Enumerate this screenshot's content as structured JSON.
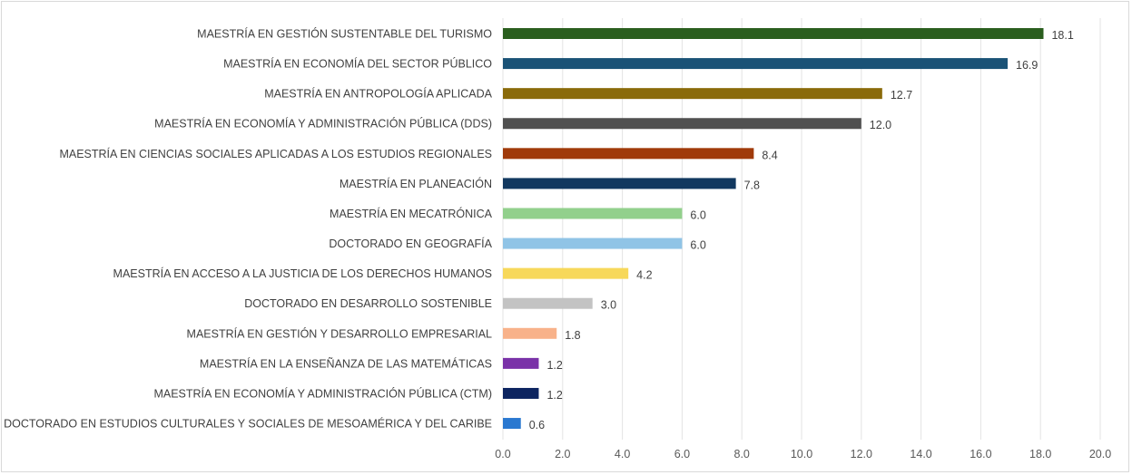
{
  "chart_data": {
    "type": "bar",
    "orientation": "horizontal",
    "title": "",
    "xlabel": "",
    "ylabel": "",
    "xlim": [
      0,
      20
    ],
    "ticks": [
      "0.0",
      "2.0",
      "4.0",
      "6.0",
      "8.0",
      "10.0",
      "12.0",
      "14.0",
      "16.0",
      "18.0",
      "20.0"
    ],
    "tick_values": [
      0,
      2,
      4,
      6,
      8,
      10,
      12,
      14,
      16,
      18,
      20
    ],
    "grid": "vertical",
    "legend": "none",
    "categories": [
      "MAESTRÍA EN GESTIÓN SUSTENTABLE DEL TURISMO",
      "MAESTRÍA EN ECONOMÍA DEL SECTOR PÚBLICO",
      "MAESTRÍA EN ANTROPOLOGÍA APLICADA",
      "MAESTRÍA EN ECONOMÍA Y ADMINISTRACIÓN PÚBLICA (DDS)",
      "MAESTRÍA EN CIENCIAS SOCIALES APLICADAS A LOS ESTUDIOS REGIONALES",
      "MAESTRÍA EN PLANEACIÓN",
      "MAESTRÍA EN MECATRÓNICA",
      "DOCTORADO EN GEOGRAFÍA",
      "MAESTRÍA EN ACCESO A LA JUSTICIA DE LOS DERECHOS HUMANOS",
      "DOCTORADO EN DESARROLLO SOSTENIBLE",
      "MAESTRÍA EN GESTIÓN Y DESARROLLO EMPRESARIAL",
      "MAESTRÍA EN LA ENSEÑANZA DE LAS MATEMÁTICAS",
      "MAESTRÍA EN ECONOMÍA Y ADMINISTRACIÓN PÚBLICA (CTM)",
      "DOCTORADO EN ESTUDIOS CULTURALES Y SOCIALES DE MESOAMÉRICA Y DEL CARIBE"
    ],
    "values": [
      18.1,
      16.9,
      12.7,
      12.0,
      8.4,
      7.8,
      6.0,
      6.0,
      4.2,
      3.0,
      1.8,
      1.2,
      1.2,
      0.6
    ],
    "value_labels": [
      "18.1",
      "16.9",
      "12.7",
      "12.0",
      "8.4",
      "7.8",
      "6.0",
      "6.0",
      "4.2",
      "3.0",
      "1.8",
      "1.2",
      "1.2",
      "0.6"
    ],
    "colors": [
      "#2a5e1e",
      "#1a5276",
      "#8a6a0a",
      "#505050",
      "#a03a0a",
      "#12385f",
      "#92d08c",
      "#90c4e6",
      "#f7d85a",
      "#c3c3c3",
      "#f8b28a",
      "#7a32a8",
      "#0c2460",
      "#2a78d0"
    ]
  }
}
